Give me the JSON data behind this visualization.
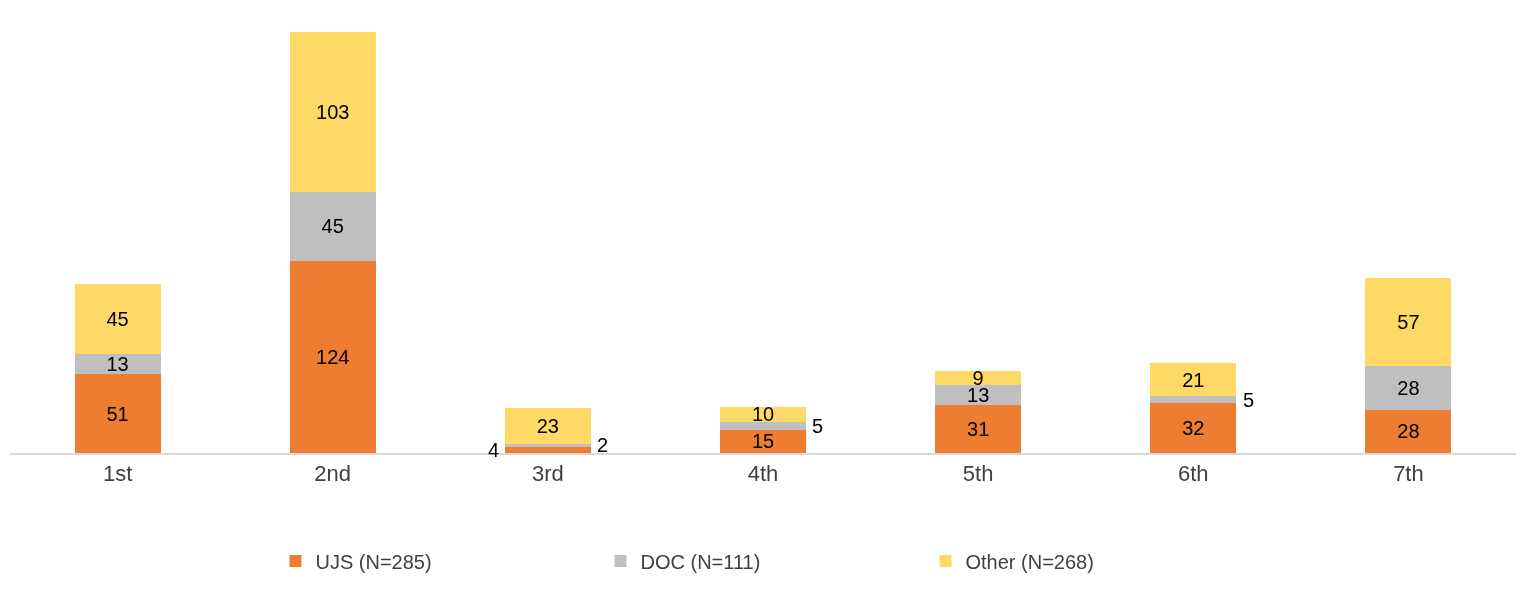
{
  "chart_data": {
    "type": "bar",
    "stacked": true,
    "data_labels": true,
    "legend": "bottom",
    "categories": [
      "1st",
      "2nd",
      "3rd",
      "4th",
      "5th",
      "6th",
      "7th"
    ],
    "series": [
      {
        "name": "UJS (N=285)",
        "color": "#ed7d31",
        "values": [
          51,
          124,
          4,
          15,
          31,
          32,
          28
        ]
      },
      {
        "name": "DOC (N=111)",
        "color": "#bfbfbf",
        "values": [
          13,
          45,
          2,
          5,
          13,
          5,
          28
        ]
      },
      {
        "name": "Other (N=268)",
        "color": "#ffd966",
        "values": [
          45,
          103,
          23,
          10,
          9,
          21,
          57
        ]
      }
    ]
  }
}
